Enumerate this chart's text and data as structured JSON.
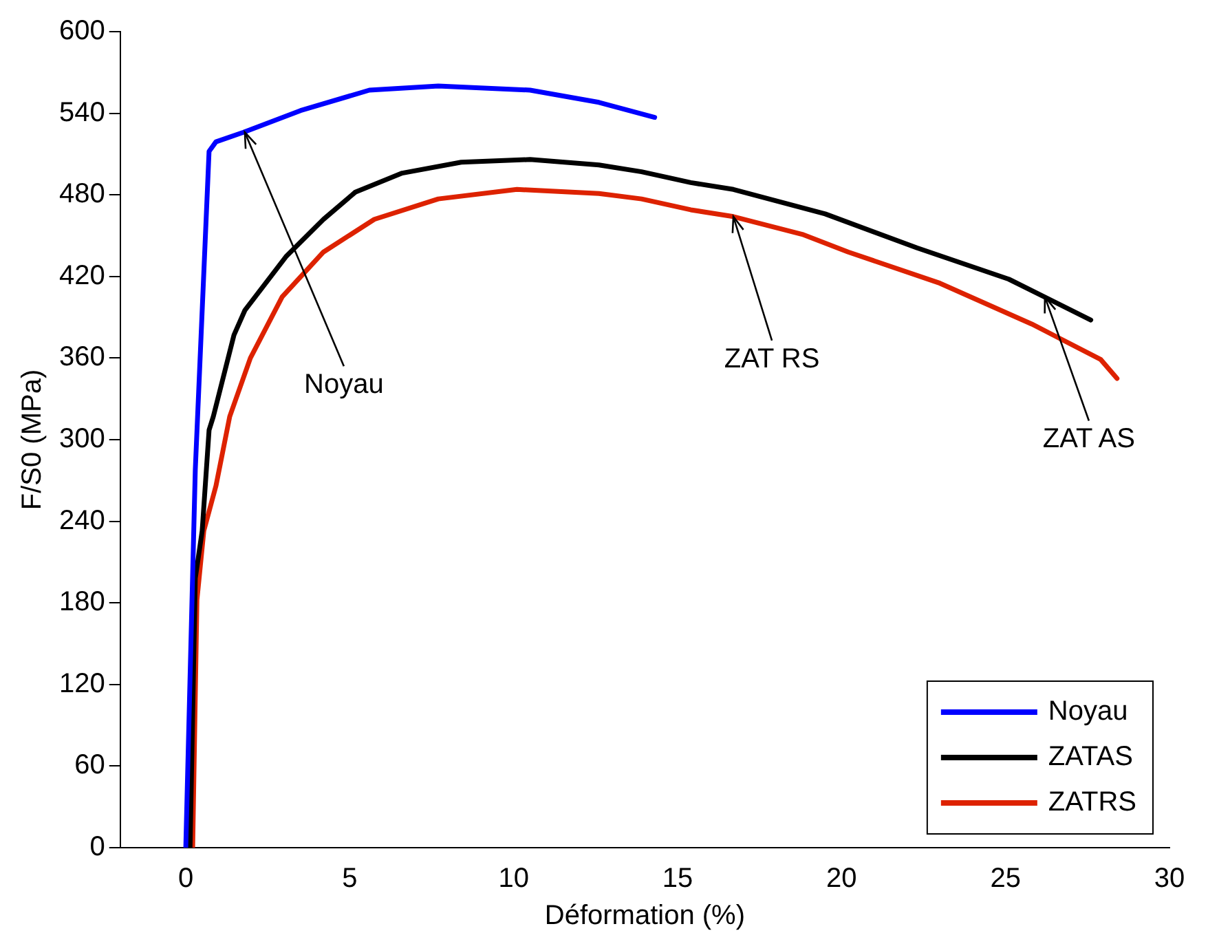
{
  "chart_data": {
    "type": "line",
    "xlabel": "Déformation (%)",
    "ylabel": "F/S0 (MPa)",
    "xlim": [
      -2,
      30
    ],
    "xticks": [
      0,
      5,
      10,
      15,
      20,
      25,
      30
    ],
    "ylim": [
      0,
      600
    ],
    "yticks": [
      0,
      60,
      120,
      180,
      240,
      300,
      360,
      420,
      480,
      540,
      600
    ],
    "grid": false,
    "legend": "bottom right",
    "marker": "none",
    "line_style": "solid",
    "series": [
      {
        "name": "Noyau",
        "color": "#0000ff",
        "x": [
          0,
          0.29,
          0.71,
          0.92,
          1.76,
          3.5,
          5.6,
          7.7,
          10.5,
          12.6,
          14.3
        ],
        "values": [
          0,
          278,
          512,
          519,
          526,
          542,
          557,
          560,
          557,
          548,
          537
        ]
      },
      {
        "name": "ZATAS",
        "color": "#000000",
        "x": [
          0.13,
          0.29,
          0.5,
          0.71,
          0.84,
          1.47,
          1.8,
          3.07,
          4.2,
          5.17,
          6.6,
          8.4,
          10.5,
          12.6,
          13.9,
          15.4,
          16.7,
          19.5,
          22.3,
          25.1,
          27.6
        ],
        "values": [
          0,
          198,
          233,
          307,
          317,
          377,
          395,
          435,
          462,
          482,
          496,
          504,
          506,
          502,
          497,
          489,
          484,
          466,
          441,
          418,
          388
        ]
      },
      {
        "name": "ZATRS",
        "color": "#dd2200",
        "x": [
          0.21,
          0.34,
          0.55,
          0.92,
          1.34,
          1.97,
          2.94,
          4.2,
          5.75,
          7.7,
          10.1,
          12.6,
          13.9,
          15.4,
          16.7,
          18.8,
          20.2,
          23,
          25.8,
          27.9,
          28.4
        ],
        "values": [
          0,
          182,
          233,
          266,
          317,
          360,
          405,
          438,
          462,
          477,
          484,
          481,
          477,
          469,
          464,
          451,
          438,
          415,
          385,
          359,
          345
        ]
      }
    ],
    "annotations": [
      {
        "text": "Noyau",
        "x": 1.8,
        "y": 526
      },
      {
        "text": "ZAT RS",
        "x": 16.7,
        "y": 464
      },
      {
        "text": "ZAT AS",
        "x": 26.2,
        "y": 405
      }
    ]
  }
}
